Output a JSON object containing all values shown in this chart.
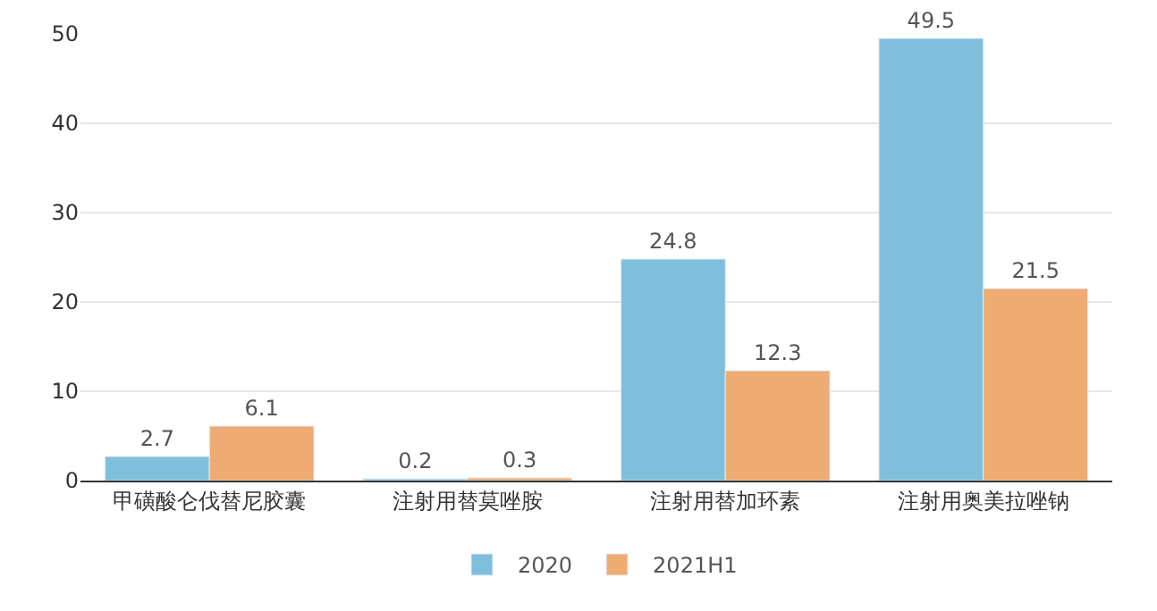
{
  "chart_data": {
    "type": "bar",
    "categories": [
      "甲磺酸仑伐替尼胶囊",
      "注射用替莫唑胺",
      "注射用替加环素",
      "注射用奥美拉唑钠"
    ],
    "series": [
      {
        "name": "2020",
        "color": "#7fbfdc",
        "values": [
          2.7,
          0.2,
          24.8,
          49.5
        ]
      },
      {
        "name": "2021H1",
        "color": "#eeab72",
        "values": [
          6.1,
          0.3,
          12.3,
          21.5
        ]
      }
    ],
    "ylim": [
      0,
      50
    ],
    "yticks": [
      0,
      10,
      20,
      30,
      40,
      50
    ],
    "grid": "y",
    "legend": "bottom",
    "data_labels": true
  }
}
